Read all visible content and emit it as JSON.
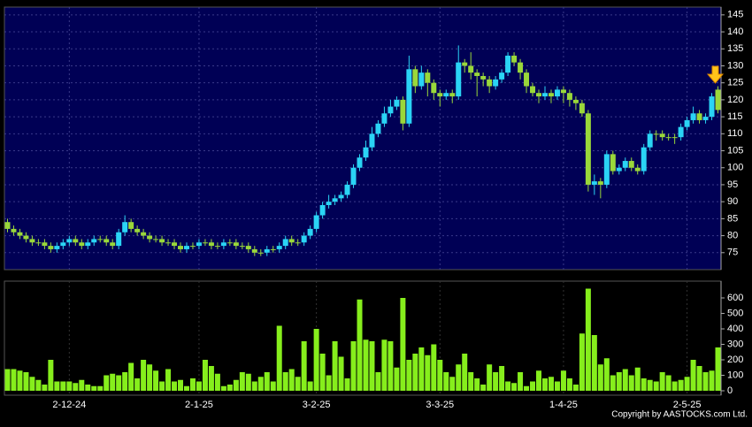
{
  "chart_data": [
    {
      "type": "candlestick",
      "open": [
        84,
        82,
        81,
        80,
        79,
        78,
        78,
        77,
        76,
        77,
        78,
        79,
        78,
        77,
        78,
        79,
        79,
        78,
        77,
        81,
        84,
        82,
        81,
        80,
        79,
        79,
        78,
        78,
        77,
        76,
        77,
        77,
        78,
        78,
        77,
        77,
        78,
        78,
        77,
        77,
        76,
        75,
        75,
        76,
        76,
        77,
        79,
        78,
        78,
        80,
        82,
        86,
        89,
        90,
        91,
        92,
        95,
        100,
        103,
        106,
        110,
        113,
        116,
        118,
        120,
        113,
        129,
        124,
        128,
        125,
        122,
        121,
        122,
        121,
        131,
        130,
        128,
        127,
        126,
        124,
        126,
        128,
        133,
        131,
        128,
        124,
        122,
        121,
        122,
        121,
        123,
        122,
        120,
        119,
        116,
        95,
        96,
        95,
        104,
        99,
        100,
        102,
        100,
        99,
        106,
        110,
        110,
        109,
        109,
        109,
        112,
        114,
        116,
        114,
        115,
        123
      ],
      "high": [
        85,
        83,
        82,
        81,
        80,
        79,
        79,
        78,
        78,
        79,
        80,
        80,
        79,
        79,
        80,
        80,
        80,
        79,
        82,
        86,
        85,
        83,
        82,
        81,
        80,
        80,
        79,
        79,
        78,
        78,
        78,
        79,
        79,
        79,
        78,
        79,
        79,
        79,
        78,
        78,
        77,
        76,
        77,
        77,
        78,
        80,
        80,
        79,
        81,
        83,
        87,
        90,
        92,
        92,
        93,
        96,
        101,
        104,
        108,
        112,
        114,
        118,
        120,
        121,
        121,
        133,
        130,
        130,
        129,
        126,
        123,
        123,
        123,
        136,
        132,
        134,
        129,
        128,
        127,
        127,
        129,
        134,
        134,
        132,
        129,
        125,
        123,
        124,
        123,
        124,
        124,
        123,
        121,
        120,
        117,
        98,
        97,
        105,
        105,
        101,
        103,
        103,
        101,
        107,
        111,
        111,
        111,
        110,
        110,
        113,
        115,
        118,
        117,
        116,
        122,
        124
      ],
      "low": [
        81,
        80,
        79,
        78,
        77,
        77,
        76,
        75,
        75,
        76,
        77,
        77,
        76,
        76,
        77,
        78,
        77,
        76,
        76,
        80,
        81,
        80,
        79,
        78,
        78,
        77,
        77,
        76,
        75,
        75,
        76,
        76,
        77,
        76,
        76,
        76,
        77,
        76,
        76,
        75,
        74,
        74,
        74,
        75,
        75,
        76,
        77,
        77,
        77,
        79,
        81,
        85,
        88,
        89,
        90,
        91,
        94,
        99,
        102,
        105,
        109,
        112,
        115,
        117,
        111,
        112,
        122,
        123,
        121,
        120,
        118,
        120,
        119,
        120,
        128,
        126,
        121,
        124,
        122,
        123,
        125,
        127,
        130,
        126,
        122,
        121,
        119,
        120,
        119,
        120,
        119,
        118,
        117,
        115,
        93,
        92,
        91,
        94,
        98,
        98,
        99,
        99,
        98,
        98,
        105,
        108,
        108,
        108,
        107,
        108,
        111,
        113,
        113,
        113,
        114,
        116
      ],
      "close": [
        82,
        81,
        80,
        79,
        78,
        78,
        77,
        76,
        77,
        78,
        79,
        78,
        77,
        78,
        79,
        79,
        78,
        77,
        81,
        84,
        82,
        81,
        80,
        79,
        79,
        78,
        78,
        77,
        76,
        77,
        77,
        78,
        78,
        77,
        77,
        78,
        78,
        77,
        77,
        76,
        75,
        75,
        76,
        76,
        77,
        79,
        78,
        78,
        80,
        82,
        86,
        89,
        90,
        91,
        92,
        95,
        100,
        103,
        106,
        110,
        113,
        116,
        118,
        120,
        113,
        129,
        124,
        128,
        125,
        122,
        121,
        122,
        121,
        131,
        130,
        128,
        127,
        126,
        124,
        126,
        128,
        133,
        131,
        128,
        124,
        122,
        121,
        122,
        121,
        123,
        122,
        120,
        119,
        116,
        95,
        96,
        95,
        104,
        99,
        100,
        102,
        100,
        99,
        106,
        110,
        110,
        109,
        109,
        109,
        112,
        114,
        116,
        114,
        115,
        121,
        117
      ],
      "up_color": "#2ad4f5",
      "down_color": "#9ad83a",
      "ylim": [
        70,
        147.3
      ],
      "yticks": [
        75,
        80,
        85,
        90,
        95,
        100,
        105,
        110,
        115,
        120,
        125,
        130,
        135,
        140,
        145
      ],
      "grid": true
    },
    {
      "type": "bar",
      "categories": [
        null,
        null,
        null,
        null,
        null,
        null,
        null,
        null,
        null,
        null,
        "2-12-24",
        null,
        null,
        null,
        null,
        null,
        null,
        null,
        null,
        null,
        null,
        null,
        null,
        null,
        null,
        null,
        null,
        null,
        null,
        null,
        null,
        "2-1-25",
        null,
        null,
        null,
        null,
        null,
        null,
        null,
        null,
        null,
        null,
        null,
        null,
        null,
        null,
        null,
        null,
        null,
        null,
        "3-2-25",
        null,
        null,
        null,
        null,
        null,
        null,
        null,
        null,
        null,
        null,
        null,
        null,
        null,
        null,
        null,
        null,
        null,
        null,
        null,
        "3-3-25",
        null,
        null,
        null,
        null,
        null,
        null,
        null,
        null,
        null,
        null,
        null,
        null,
        null,
        null,
        null,
        null,
        null,
        null,
        null,
        "1-4-25",
        null,
        null,
        null,
        null,
        null,
        null,
        null,
        null,
        null,
        null,
        null,
        null,
        null,
        null,
        null,
        null,
        null,
        null,
        null,
        "2-5-25",
        null,
        null,
        null,
        null,
        null
      ],
      "values": [
        140,
        140,
        130,
        120,
        90,
        70,
        40,
        200,
        60,
        60,
        60,
        50,
        70,
        40,
        30,
        30,
        100,
        110,
        100,
        120,
        180,
        80,
        200,
        170,
        130,
        60,
        140,
        60,
        70,
        30,
        80,
        60,
        200,
        160,
        110,
        30,
        40,
        70,
        120,
        110,
        60,
        90,
        120,
        60,
        420,
        120,
        140,
        90,
        320,
        60,
        400,
        240,
        100,
        320,
        220,
        80,
        320,
        590,
        330,
        320,
        120,
        330,
        320,
        150,
        600,
        200,
        240,
        280,
        230,
        300,
        200,
        120,
        90,
        170,
        240,
        120,
        80,
        40,
        170,
        120,
        160,
        60,
        50,
        120,
        30,
        60,
        130,
        80,
        90,
        60,
        130,
        80,
        40,
        370,
        660,
        360,
        170,
        210,
        100,
        120,
        140,
        100,
        150,
        80,
        70,
        60,
        120,
        100,
        60,
        70,
        90,
        200,
        160,
        120,
        130,
        280
      ],
      "color": "#86ee1c",
      "ylim": [
        0,
        680
      ],
      "yticks": [
        0,
        100,
        200,
        300,
        400,
        500,
        600
      ],
      "grid": true
    }
  ],
  "footer": "Copyright by AASTOCKS.com Ltd."
}
